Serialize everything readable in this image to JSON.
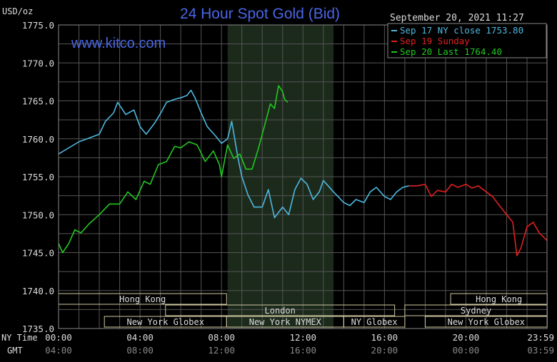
{
  "header": {
    "title": "24 Hour Spot Gold (Bid)",
    "units": "USD/oz",
    "watermark": "www.kitco.com",
    "datetime": "September 20, 2021 11:27"
  },
  "legend": [
    {
      "label": "Sep 17 NY close 1753.80",
      "color": "#4fb8e0"
    },
    {
      "label": "Sep 19 Sunday",
      "color": "#e02020"
    },
    {
      "label": "Sep 20 Last 1764.40",
      "color": "#22c822"
    }
  ],
  "axis_labels": {
    "ny_time": "NY Time",
    "gmt": "GMT"
  },
  "sessions": [
    {
      "label": "Hong Kong",
      "row": 1,
      "start": 0,
      "end": 8.25
    },
    {
      "label": "London",
      "row": 2,
      "start": 5.25,
      "end": 16.5
    },
    {
      "label": "New York Globex",
      "row": 3,
      "start": 2.25,
      "end": 8.25
    },
    {
      "label": "New York NYMEX",
      "row": 3,
      "start": 8.25,
      "end": 14.0
    },
    {
      "label": "NY Globex",
      "row": 3,
      "start": 14.0,
      "end": 17.0
    },
    {
      "label": "Hong Kong",
      "row": 1,
      "start": 19.25,
      "end": 23.99
    },
    {
      "label": "Sydney",
      "row": 2,
      "start": 17.0,
      "end": 23.99
    },
    {
      "label": "New York Globex",
      "row": 3,
      "start": 18.0,
      "end": 23.99
    }
  ],
  "chart_data": {
    "type": "line",
    "title": "24 Hour Spot Gold (Bid)",
    "ylabel": "USD/oz",
    "ylim": [
      1735.0,
      1775.0
    ],
    "yticks": [
      "1775.0",
      "1770.0",
      "1765.0",
      "1760.0",
      "1755.0",
      "1750.0",
      "1745.0",
      "1740.0",
      "1735.0"
    ],
    "xlim": [
      0,
      23.98
    ],
    "xticks_ny": [
      "00:00",
      "04:00",
      "08:00",
      "12:00",
      "16:00",
      "20:00",
      "23:59"
    ],
    "xticks_gmt": [
      "04:00",
      "08:00",
      "12:00",
      "16:00",
      "20:00",
      "00:00",
      "03:59"
    ],
    "highlight_range": [
      8.3,
      13.5
    ],
    "grid": true,
    "series": [
      {
        "name": "Sep 17 NY close 1753.80",
        "color": "#4fb8e0",
        "points": [
          [
            0,
            1758.0
          ],
          [
            0.5,
            1758.8
          ],
          [
            1.0,
            1759.6
          ],
          [
            1.5,
            1760.1
          ],
          [
            2.0,
            1760.6
          ],
          [
            2.3,
            1762.3
          ],
          [
            2.7,
            1763.4
          ],
          [
            2.9,
            1764.8
          ],
          [
            3.3,
            1763.2
          ],
          [
            3.7,
            1763.8
          ],
          [
            4.0,
            1761.6
          ],
          [
            4.3,
            1760.6
          ],
          [
            4.7,
            1762.0
          ],
          [
            5.0,
            1763.3
          ],
          [
            5.3,
            1764.8
          ],
          [
            5.7,
            1765.2
          ],
          [
            6.0,
            1765.4
          ],
          [
            6.3,
            1765.7
          ],
          [
            6.5,
            1766.4
          ],
          [
            6.7,
            1765.4
          ],
          [
            7.0,
            1763.4
          ],
          [
            7.3,
            1761.6
          ],
          [
            7.7,
            1760.4
          ],
          [
            8.0,
            1759.4
          ],
          [
            8.3,
            1760.0
          ],
          [
            8.5,
            1762.3
          ],
          [
            8.8,
            1757.6
          ],
          [
            9.0,
            1755.0
          ],
          [
            9.3,
            1752.6
          ],
          [
            9.6,
            1751.0
          ],
          [
            10.0,
            1751.0
          ],
          [
            10.3,
            1753.3
          ],
          [
            10.6,
            1749.6
          ],
          [
            11.0,
            1751.0
          ],
          [
            11.3,
            1750.0
          ],
          [
            11.6,
            1753.3
          ],
          [
            11.9,
            1754.8
          ],
          [
            12.2,
            1754.0
          ],
          [
            12.5,
            1752.0
          ],
          [
            12.8,
            1753.0
          ],
          [
            13.0,
            1754.5
          ],
          [
            13.5,
            1753.0
          ],
          [
            14.0,
            1751.6
          ],
          [
            14.3,
            1751.2
          ],
          [
            14.6,
            1752.0
          ],
          [
            15.0,
            1751.6
          ],
          [
            15.3,
            1753.0
          ],
          [
            15.6,
            1753.6
          ],
          [
            16.0,
            1752.4
          ],
          [
            16.3,
            1752.0
          ],
          [
            16.6,
            1753.0
          ],
          [
            16.9,
            1753.6
          ],
          [
            17.2,
            1753.8
          ]
        ]
      },
      {
        "name": "Sep 19 Sunday",
        "color": "#e02020",
        "points": [
          [
            17.2,
            1753.8
          ],
          [
            17.6,
            1753.8
          ],
          [
            18.0,
            1754.0
          ],
          [
            18.3,
            1752.4
          ],
          [
            18.6,
            1753.2
          ],
          [
            19.0,
            1753.0
          ],
          [
            19.3,
            1754.0
          ],
          [
            19.6,
            1753.6
          ],
          [
            20.0,
            1754.0
          ],
          [
            20.3,
            1753.5
          ],
          [
            20.6,
            1753.8
          ],
          [
            21.0,
            1753.0
          ],
          [
            21.3,
            1752.4
          ],
          [
            21.7,
            1751.0
          ],
          [
            22.0,
            1750.0
          ],
          [
            22.3,
            1749.0
          ],
          [
            22.5,
            1744.6
          ],
          [
            22.7,
            1745.6
          ],
          [
            23.0,
            1748.4
          ],
          [
            23.3,
            1749.0
          ],
          [
            23.6,
            1747.6
          ],
          [
            23.98,
            1746.6
          ]
        ]
      },
      {
        "name": "Sep 20 Last 1764.40",
        "color": "#22c822",
        "points": [
          [
            0,
            1746.2
          ],
          [
            0.2,
            1745.0
          ],
          [
            0.5,
            1746.2
          ],
          [
            0.8,
            1748.0
          ],
          [
            1.1,
            1747.6
          ],
          [
            1.5,
            1748.8
          ],
          [
            2.0,
            1750.0
          ],
          [
            2.5,
            1751.4
          ],
          [
            3.0,
            1751.4
          ],
          [
            3.4,
            1753.0
          ],
          [
            3.8,
            1752.0
          ],
          [
            4.2,
            1754.4
          ],
          [
            4.5,
            1754.0
          ],
          [
            4.9,
            1756.6
          ],
          [
            5.3,
            1757.0
          ],
          [
            5.7,
            1759.0
          ],
          [
            6.0,
            1758.8
          ],
          [
            6.4,
            1759.6
          ],
          [
            6.8,
            1759.2
          ],
          [
            7.2,
            1757.0
          ],
          [
            7.6,
            1758.4
          ],
          [
            7.9,
            1756.6
          ],
          [
            8.0,
            1755.0
          ],
          [
            8.3,
            1759.2
          ],
          [
            8.6,
            1757.4
          ],
          [
            8.9,
            1758.0
          ],
          [
            9.2,
            1756.0
          ],
          [
            9.5,
            1756.0
          ],
          [
            9.8,
            1758.6
          ],
          [
            10.1,
            1761.6
          ],
          [
            10.4,
            1764.6
          ],
          [
            10.6,
            1764.0
          ],
          [
            10.8,
            1767.0
          ],
          [
            11.0,
            1766.2
          ],
          [
            11.1,
            1765.2
          ],
          [
            11.25,
            1764.8
          ]
        ]
      }
    ]
  }
}
